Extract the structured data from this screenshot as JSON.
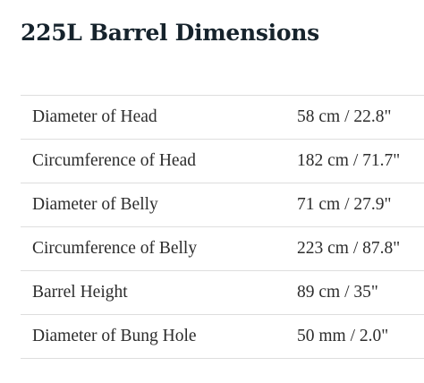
{
  "title": "225L Barrel Dimensions",
  "rows": [
    {
      "label": "Diameter of Head",
      "value": "58 cm / 22.8\""
    },
    {
      "label": "Circumference of Head",
      "value": "182 cm / 71.7\""
    },
    {
      "label": "Diameter of Belly",
      "value": "71 cm / 27.9\""
    },
    {
      "label": "Circumference of Belly",
      "value": "223 cm / 87.8\""
    },
    {
      "label": "Barrel Height",
      "value": "89 cm / 35\""
    },
    {
      "label": "Diameter of Bung Hole",
      "value": "50 mm / 2.0\""
    }
  ]
}
